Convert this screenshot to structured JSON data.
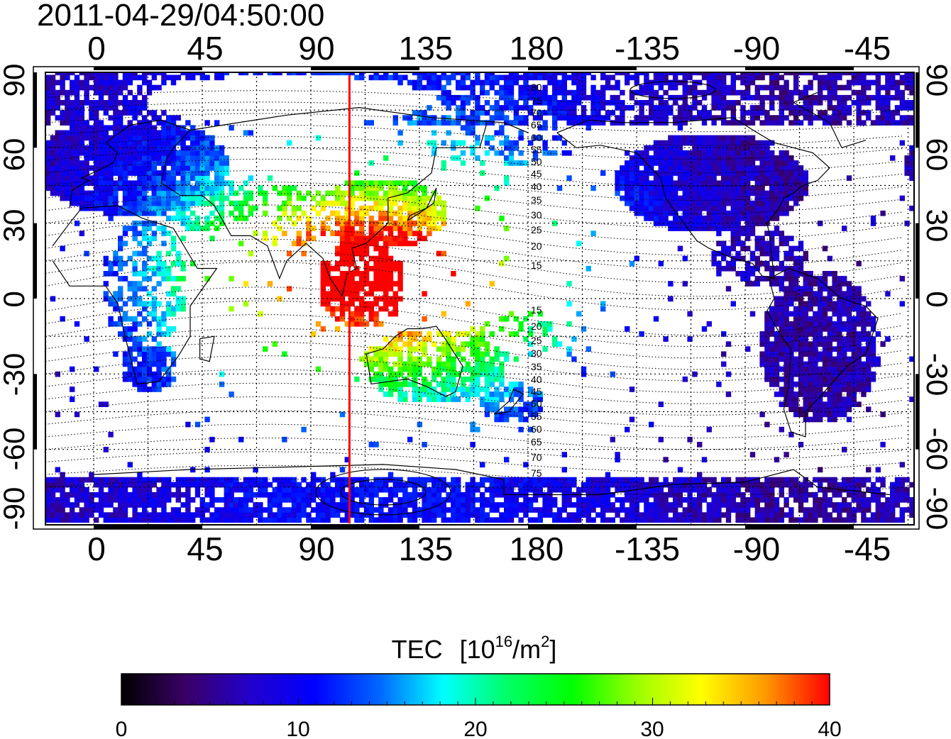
{
  "title": "2011-04-29/04:50:00",
  "map": {
    "top_ticks": [
      "0",
      "45",
      "90",
      "135",
      "180",
      "-135",
      "-90",
      "-45"
    ],
    "bottom_ticks": [
      "0",
      "45",
      "90",
      "135",
      "180",
      "-135",
      "-90",
      "-45"
    ],
    "left_ticks": [
      "90",
      "60",
      "30",
      "0",
      "-30",
      "-60",
      "-90"
    ],
    "right_ticks": [
      "90",
      "60",
      "30",
      "0",
      "-30",
      "-60",
      "-90"
    ],
    "terminator_longitude": 106,
    "terminator_color": "#ff0000",
    "contour_labels_north": [
      "80",
      "75",
      "70",
      "65",
      "60",
      "55",
      "50",
      "45",
      "40",
      "35",
      "30",
      "25",
      "20",
      "15"
    ],
    "contour_labels_south": [
      "15",
      "20",
      "25",
      "30",
      "35",
      "40",
      "45",
      "50",
      "55",
      "60",
      "65",
      "70",
      "75"
    ]
  },
  "colorbar": {
    "title": "TEC",
    "unit_prefix": "[10",
    "unit_exp": "16",
    "unit_mid": "/m",
    "unit_sq": "2",
    "unit_suffix": "]",
    "ticks": [
      "0",
      "10",
      "20",
      "30",
      "40"
    ],
    "min": 0,
    "max": 40,
    "colors": [
      "#000000",
      "#3a0066",
      "#2200cc",
      "#0000ff",
      "#0066ff",
      "#00ffff",
      "#00ff66",
      "#00ff00",
      "#99ff00",
      "#ffff00",
      "#ff9900",
      "#ff0000"
    ]
  }
}
